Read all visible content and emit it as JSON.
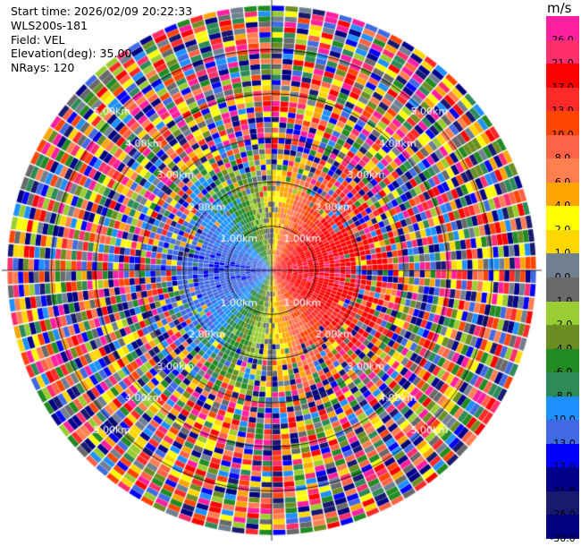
{
  "header": {
    "start_time": "Start time: 2026/02/09 20:22:33",
    "instrument": "WLS200s-181",
    "field": "Field: VEL",
    "elevation": "Elevation(deg): 35.00",
    "nrays": "NRays: 120"
  },
  "colorbar": {
    "unit": "m/s",
    "labels": [
      "26.0",
      "21.0",
      "17.0",
      "13.0",
      "10.0",
      "8.0",
      "6.0",
      "4.0",
      "2.0",
      "1.0",
      "0.0",
      "-1.0",
      "-2.0",
      "-4.0",
      "-6.0",
      "-8.0",
      "-10.0",
      "-13.0",
      "-17.0",
      "-21.0",
      "-26.0",
      "-30.0"
    ],
    "colors": [
      "#ff1fa0",
      "#ff2f6e",
      "#ff0000",
      "#ff2a2a",
      "#ff4500",
      "#ff6347",
      "#ff7f50",
      "#ffa500",
      "#ffff00",
      "#ffd700",
      "#708090",
      "#696969",
      "#9acd32",
      "#6b8e23",
      "#228b22",
      "#2e8b57",
      "#1e90ff",
      "#4169e1",
      "#0000ff",
      "#00008b",
      "#191970",
      "#000080"
    ]
  },
  "chart_data": {
    "type": "ppi",
    "field": "VEL",
    "nrays": 120,
    "range_rings_km": [
      "1.00km",
      "2.00km",
      "3.00km",
      "4.00km",
      "5.00km"
    ],
    "max_range_km": 6.0,
    "pattern": "positive velocities (reds) on the east half near center, negative velocities (blues/greens) on the west half near center, noisy random colors at far ranges"
  }
}
